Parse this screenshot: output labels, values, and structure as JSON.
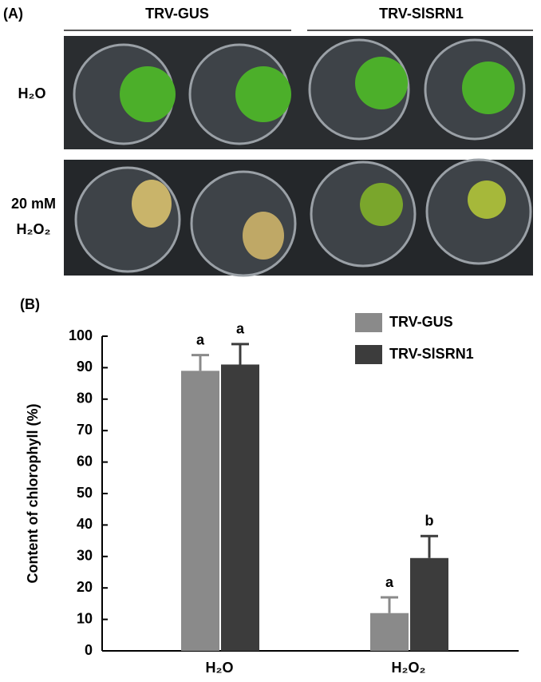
{
  "panel_a": {
    "label": "(A)",
    "columns": [
      "TRV-GUS",
      "TRV-SlSRN1"
    ],
    "rows": [
      [
        "H₂O"
      ],
      [
        "20 mM",
        "H₂O₂"
      ]
    ]
  },
  "chart_data": {
    "type": "bar",
    "panel_label": "(B)",
    "y_label": "Content of chlorophyll (%)",
    "categories": [
      "H₂O",
      "H₂O₂"
    ],
    "series": [
      {
        "name": "TRV-GUS",
        "color": "#8a8a8a",
        "values": [
          89,
          12
        ],
        "errors": [
          5,
          5
        ],
        "letters": [
          "a",
          "a"
        ]
      },
      {
        "name": "TRV-SlSRN1",
        "color": "#3c3c3c",
        "values": [
          91,
          29.5
        ],
        "errors": [
          6.5,
          7
        ],
        "letters": [
          "a",
          "b"
        ]
      }
    ],
    "ylim": [
      0,
      100
    ],
    "yticks": [
      0,
      10,
      20,
      30,
      40,
      50,
      60,
      70,
      80,
      90,
      100
    ],
    "grid": false,
    "legend": "upper right"
  }
}
